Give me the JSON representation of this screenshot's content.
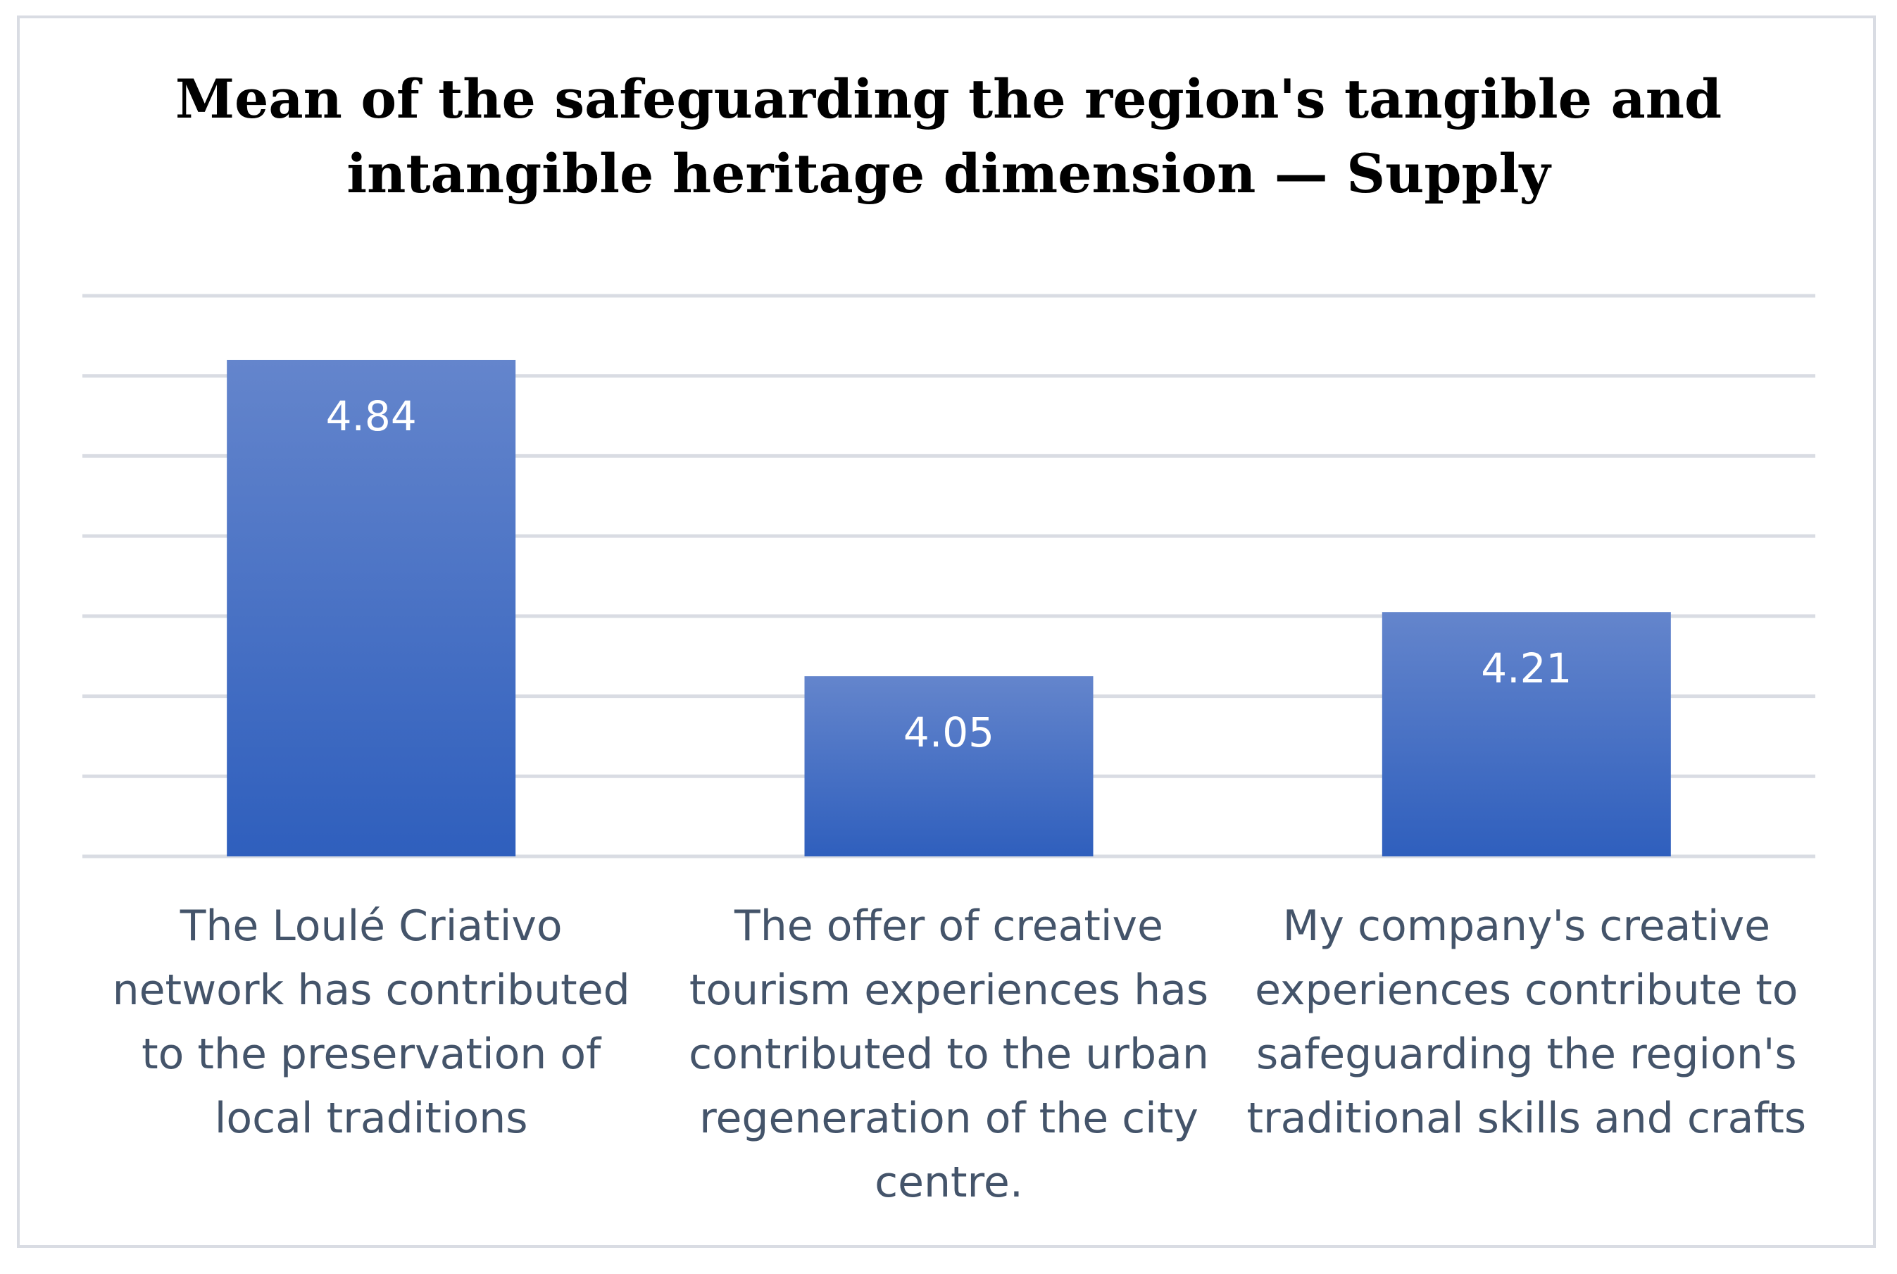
{
  "chart_data": {
    "type": "bar",
    "title_lines": [
      "Mean of the safeguarding the region's tangible and",
      "intangible heritage dimension — Supply"
    ],
    "categories": [
      [
        "The Loulé Criativo",
        "network has contributed",
        "to the preservation of",
        "local traditions"
      ],
      [
        "The offer of creative",
        "tourism experiences has",
        "contributed to the urban",
        "regeneration of the city",
        "centre."
      ],
      [
        "My company's creative",
        "experiences contribute to",
        "safeguarding the region's",
        "traditional skills and crafts"
      ]
    ],
    "values": [
      4.84,
      4.05,
      4.21
    ],
    "data_labels": [
      "4.84",
      "4.05",
      "4.21"
    ],
    "ylim": [
      3.6,
      5.0
    ],
    "grid": true,
    "legend": "none",
    "colors": {
      "bar_top": "#6485cc",
      "bar_bottom": "#2f5fbd",
      "gridline": "#d9dce3",
      "label_text": "#44546a",
      "data_label_text": "#ffffff",
      "frame": "#d9dce3"
    }
  }
}
